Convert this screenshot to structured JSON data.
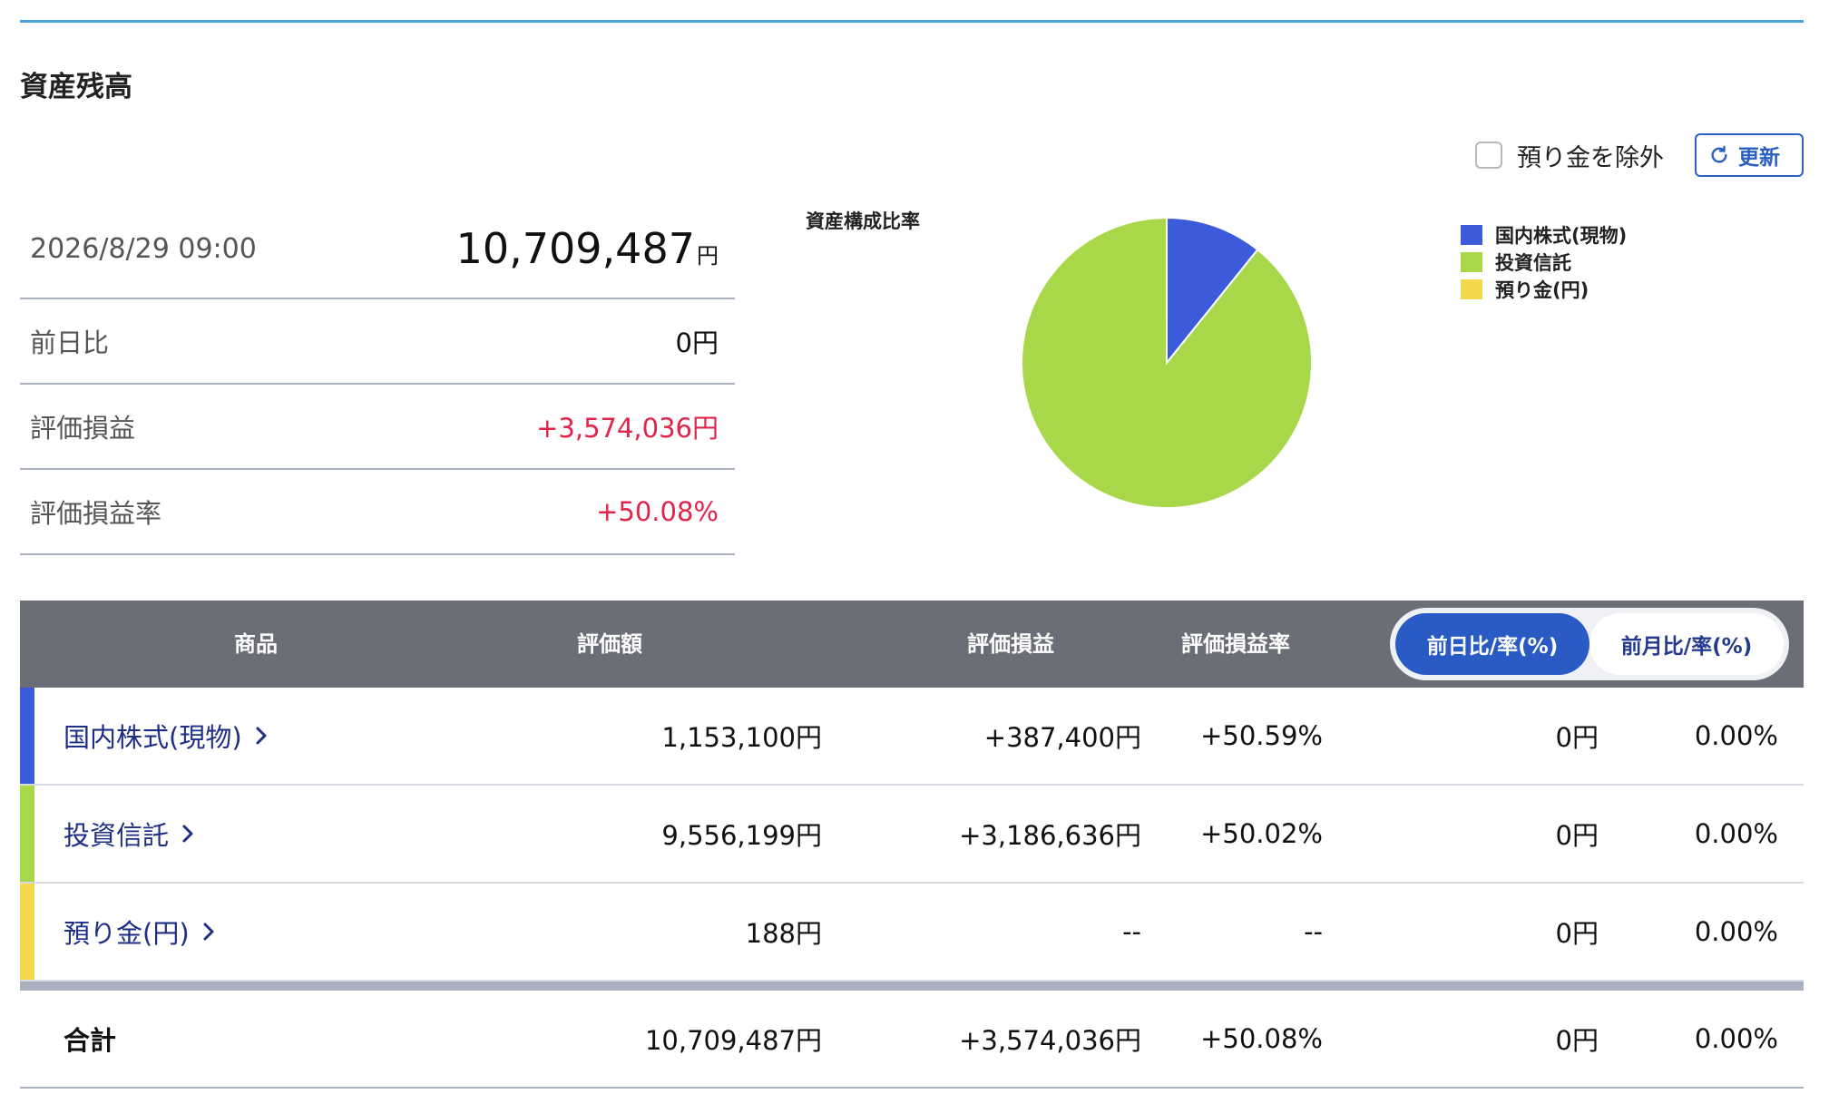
{
  "title": "資産残高",
  "controls": {
    "exclude_label": "預り金を除外",
    "refresh_label": "更新"
  },
  "summary": {
    "datetime": "2026/8/29 09:00",
    "total": "10,709,487",
    "total_unit": "円",
    "rows": [
      {
        "label": "前日比",
        "value": "0円"
      },
      {
        "label": "評価損益",
        "value": "+3,574,036円"
      },
      {
        "label": "評価損益率",
        "value": "+50.08%"
      }
    ]
  },
  "pie": {
    "title": "資産構成比率",
    "slices": [
      {
        "label": "国内株式(現物)",
        "value": 1153100,
        "color": "#3b5bdb"
      },
      {
        "label": "投資信託",
        "value": 9556199,
        "color": "#a8d84a"
      },
      {
        "label": "預り金(円)",
        "value": 188,
        "color": "#f3d84a"
      }
    ]
  },
  "table": {
    "headers": {
      "product": "商品",
      "value": "評価額",
      "pl": "評価損益",
      "pl_rate": "評価損益率"
    },
    "toggle": {
      "daily": "前日比/率(%)",
      "monthly": "前月比/率(%)"
    },
    "rows": [
      {
        "name": "国内株式(現物)",
        "value": "1,153,100円",
        "pl": "+387,400円",
        "pl_rate": "+50.59%",
        "change": "0円",
        "change_rate": "0.00%",
        "color": "#3b5bdb"
      },
      {
        "name": "投資信託",
        "value": "9,556,199円",
        "pl": "+3,186,636円",
        "pl_rate": "+50.02%",
        "change": "0円",
        "change_rate": "0.00%",
        "color": "#a8d84a"
      },
      {
        "name": "預り金(円)",
        "value": "188円",
        "pl": "--",
        "pl_rate": "--",
        "change": "0円",
        "change_rate": "0.00%",
        "color": "#f3d84a"
      }
    ],
    "total": {
      "label": "合計",
      "value": "10,709,487円",
      "pl": "+3,574,036円",
      "pl_rate": "+50.08%",
      "change": "0円",
      "change_rate": "0.00%"
    }
  }
}
